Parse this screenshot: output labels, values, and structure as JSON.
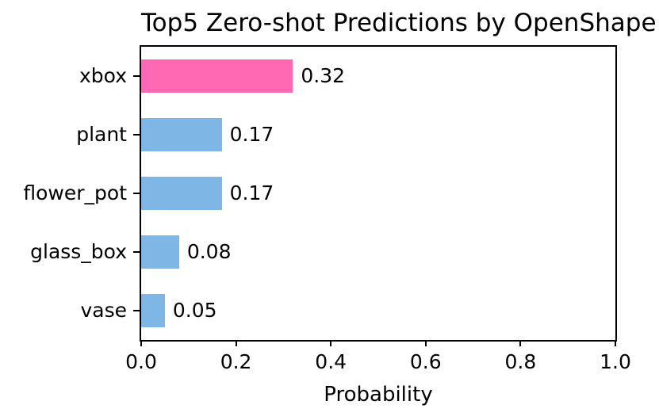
{
  "chart_data": {
    "type": "bar",
    "orientation": "horizontal",
    "title": "Top5 Zero-shot Predictions by OpenShape",
    "xlabel": "Probability",
    "ylabel": "",
    "categories": [
      "xbox",
      "plant",
      "flower_pot",
      "glass_box",
      "vase"
    ],
    "values": [
      0.32,
      0.17,
      0.17,
      0.08,
      0.05
    ],
    "value_labels": [
      "0.32",
      "0.17",
      "0.17",
      "0.08",
      "0.05"
    ],
    "bar_colors": [
      "#FF69B4",
      "#7EB6E5",
      "#7EB6E5",
      "#7EB6E5",
      "#7EB6E5"
    ],
    "highlight_color": "#FF69B4",
    "default_bar_color": "#7EB6E5",
    "xlim": [
      0.0,
      1.0
    ],
    "xtick_labels": [
      "0.0",
      "0.2",
      "0.4",
      "0.6",
      "0.8",
      "1.0"
    ],
    "xtick_values": [
      0.0,
      0.2,
      0.4,
      0.6,
      0.8,
      1.0
    ],
    "grid": false,
    "legend_position": "none",
    "text_color": "#000000",
    "axis_color": "#000000",
    "background_color": "#FFFFFF"
  }
}
